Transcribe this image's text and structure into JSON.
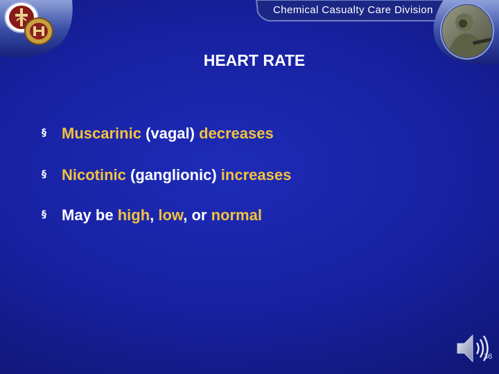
{
  "header": {
    "division": "Chemical Casualty Care Division"
  },
  "slide": {
    "title": "HEART RATE",
    "page_number": "36"
  },
  "bullets": [
    {
      "parts": [
        "Muscarinic",
        " (vagal) ",
        "decreases"
      ]
    },
    {
      "parts": [
        "Nicotinic",
        " (ganglionic) ",
        "increases"
      ]
    },
    {
      "parts": [
        "May be ",
        "high",
        ", ",
        "low",
        ", or ",
        "normal"
      ]
    }
  ],
  "icons": {
    "bullet": "square-bullet-icon",
    "audio": "speaker-icon",
    "logos": [
      "medical-department-crest-icon",
      "unit-crest-icon",
      "soldier-photo-icon"
    ]
  },
  "colors": {
    "background": "#1721a0",
    "highlight": "#f4c23e",
    "text": "#ffffff"
  }
}
